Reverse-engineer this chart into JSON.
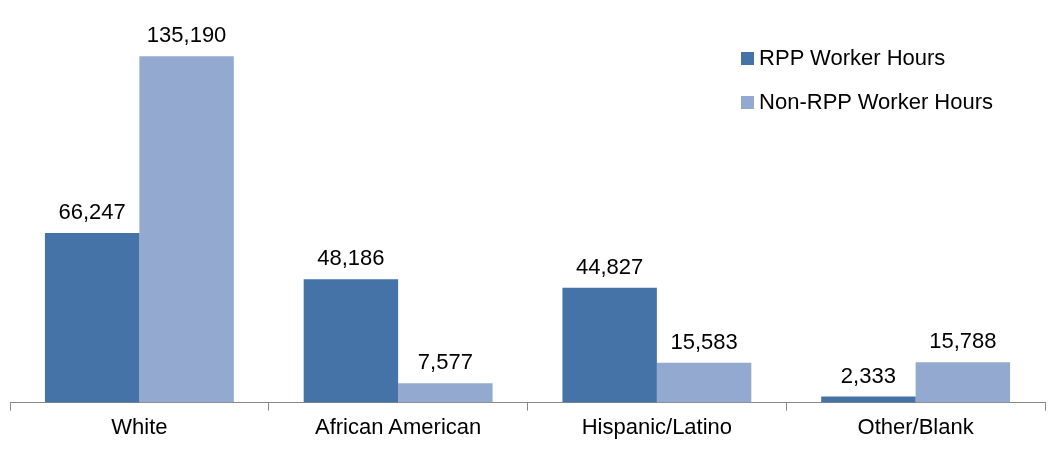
{
  "chart_data": {
    "type": "bar",
    "categories": [
      "White",
      "African American",
      "Hispanic/Latino",
      "Other/Blank"
    ],
    "series": [
      {
        "name": "RPP Worker Hours",
        "color": "#4572a7",
        "values": [
          66247,
          48186,
          44827,
          2333
        ],
        "value_labels": [
          "66,247",
          "48,186",
          "44,827",
          "2,333"
        ]
      },
      {
        "name": "Non-RPP Worker Hours",
        "color": "#93a9cf",
        "values": [
          135190,
          7577,
          15583,
          15788
        ],
        "value_labels": [
          "135,190",
          "7,577",
          "15,583",
          "15,788"
        ]
      }
    ],
    "legend": "top right",
    "grid": false
  }
}
